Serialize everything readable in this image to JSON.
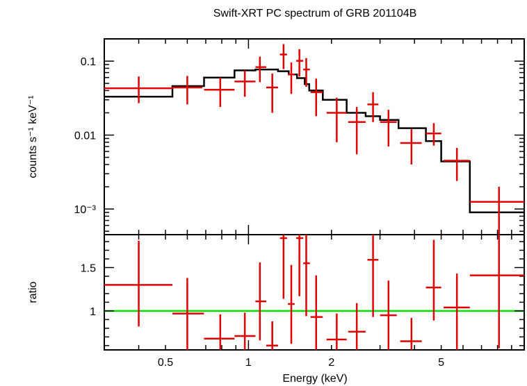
{
  "chart_data": [
    {
      "type": "scatter",
      "panel": "spectrum",
      "title": "Swift-XRT PC spectrum of GRB 201104B",
      "xlabel": "Energy (keV)",
      "ylabel": "counts s⁻¹ keV⁻¹",
      "xscale": "log",
      "yscale": "log",
      "xlim": [
        0.3,
        10
      ],
      "ylim": [
        0.00045,
        0.2
      ],
      "y_tick_labels": [
        "0.1",
        "0.01",
        "10⁻³"
      ],
      "y_tick_values": [
        0.1,
        0.01,
        0.001
      ],
      "x_tick_labels": [
        "0.5",
        "1",
        "2",
        "5"
      ],
      "x_tick_values": [
        0.5,
        1,
        2,
        5
      ],
      "series": [
        {
          "kind": "data",
          "color": "#e00000",
          "points": [
            {
              "x": 0.4,
              "xlo": 0.3,
              "xhi": 0.53,
              "y": 0.043,
              "ylo": 0.027,
              "yhi": 0.062
            },
            {
              "x": 0.6,
              "xlo": 0.53,
              "xhi": 0.68,
              "y": 0.044,
              "ylo": 0.026,
              "yhi": 0.063
            },
            {
              "x": 0.79,
              "xlo": 0.69,
              "xhi": 0.89,
              "y": 0.041,
              "ylo": 0.024,
              "yhi": 0.06
            },
            {
              "x": 0.97,
              "xlo": 0.89,
              "xhi": 1.06,
              "y": 0.053,
              "ylo": 0.033,
              "yhi": 0.075
            },
            {
              "x": 1.1,
              "xlo": 1.06,
              "xhi": 1.16,
              "y": 0.083,
              "ylo": 0.052,
              "yhi": 0.115
            },
            {
              "x": 1.22,
              "xlo": 1.16,
              "xhi": 1.28,
              "y": 0.044,
              "ylo": 0.02,
              "yhi": 0.068
            },
            {
              "x": 1.34,
              "xlo": 1.3,
              "xhi": 1.38,
              "y": 0.123,
              "ylo": 0.078,
              "yhi": 0.17
            },
            {
              "x": 1.43,
              "xlo": 1.39,
              "xhi": 1.47,
              "y": 0.066,
              "ylo": 0.036,
              "yhi": 0.096
            },
            {
              "x": 1.53,
              "xlo": 1.49,
              "xhi": 1.58,
              "y": 0.101,
              "ylo": 0.062,
              "yhi": 0.145
            },
            {
              "x": 1.62,
              "xlo": 1.58,
              "xhi": 1.67,
              "y": 0.077,
              "ylo": 0.045,
              "yhi": 0.11
            },
            {
              "x": 1.76,
              "xlo": 1.68,
              "xhi": 1.86,
              "y": 0.038,
              "ylo": 0.018,
              "yhi": 0.058
            },
            {
              "x": 2.09,
              "xlo": 1.92,
              "xhi": 2.27,
              "y": 0.02,
              "ylo": 0.008,
              "yhi": 0.032
            },
            {
              "x": 2.47,
              "xlo": 2.3,
              "xhi": 2.66,
              "y": 0.015,
              "ylo": 0.0055,
              "yhi": 0.024
            },
            {
              "x": 2.83,
              "xlo": 2.7,
              "xhi": 2.96,
              "y": 0.026,
              "ylo": 0.015,
              "yhi": 0.038
            },
            {
              "x": 3.22,
              "xlo": 3.0,
              "xhi": 3.45,
              "y": 0.015,
              "ylo": 0.007,
              "yhi": 0.022
            },
            {
              "x": 3.9,
              "xlo": 3.55,
              "xhi": 4.25,
              "y": 0.0078,
              "ylo": 0.004,
              "yhi": 0.012
            },
            {
              "x": 4.7,
              "xlo": 4.4,
              "xhi": 5.0,
              "y": 0.0105,
              "ylo": 0.0072,
              "yhi": 0.0145
            },
            {
              "x": 5.7,
              "xlo": 5.1,
              "xhi": 6.35,
              "y": 0.0045,
              "ylo": 0.0024,
              "yhi": 0.0067
            },
            {
              "x": 8.1,
              "xlo": 6.35,
              "xhi": 10.0,
              "y": 0.00125,
              "ylo": 0.00045,
              "yhi": 0.002
            }
          ]
        },
        {
          "kind": "model",
          "color": "#000000",
          "steps": [
            {
              "xlo": 0.3,
              "xhi": 0.53,
              "y": 0.033
            },
            {
              "xlo": 0.53,
              "xhi": 0.69,
              "y": 0.046
            },
            {
              "xlo": 0.69,
              "xhi": 0.89,
              "y": 0.06
            },
            {
              "xlo": 0.89,
              "xhi": 1.06,
              "y": 0.075
            },
            {
              "xlo": 1.06,
              "xhi": 1.28,
              "y": 0.077
            },
            {
              "xlo": 1.28,
              "xhi": 1.4,
              "y": 0.073
            },
            {
              "xlo": 1.4,
              "xhi": 1.5,
              "y": 0.066
            },
            {
              "xlo": 1.5,
              "xhi": 1.6,
              "y": 0.059
            },
            {
              "xlo": 1.6,
              "xhi": 1.66,
              "y": 0.049
            },
            {
              "xlo": 1.66,
              "xhi": 1.86,
              "y": 0.04
            },
            {
              "xlo": 1.86,
              "xhi": 2.27,
              "y": 0.03
            },
            {
              "xlo": 2.27,
              "xhi": 2.66,
              "y": 0.02
            },
            {
              "xlo": 2.66,
              "xhi": 3.0,
              "y": 0.018
            },
            {
              "xlo": 3.0,
              "xhi": 3.5,
              "y": 0.016
            },
            {
              "xlo": 3.5,
              "xhi": 4.4,
              "y": 0.0124
            },
            {
              "xlo": 4.4,
              "xhi": 5.0,
              "y": 0.0083
            },
            {
              "xlo": 5.0,
              "xhi": 6.35,
              "y": 0.0044
            },
            {
              "xlo": 6.35,
              "xhi": 10.0,
              "y": 0.0009
            }
          ]
        }
      ]
    },
    {
      "type": "scatter",
      "panel": "ratio",
      "xlabel": "Energy (keV)",
      "ylabel": "ratio",
      "xscale": "log",
      "xlim": [
        0.3,
        10
      ],
      "ylim": [
        0.55,
        1.88
      ],
      "y_tick_labels": [
        "1",
        "1.5"
      ],
      "y_tick_values": [
        1,
        1.5
      ],
      "x_tick_labels": [
        "0.5",
        "1",
        "2",
        "5"
      ],
      "x_tick_values": [
        0.5,
        1,
        2,
        5
      ],
      "reference_line": {
        "y": 1,
        "color": "#00e000"
      },
      "series": [
        {
          "kind": "data",
          "color": "#e00000",
          "points": [
            {
              "x": 0.4,
              "xlo": 0.3,
              "xhi": 0.53,
              "y": 1.3,
              "ylo": 0.82,
              "yhi": 1.81
            },
            {
              "x": 0.6,
              "xlo": 0.53,
              "xhi": 0.69,
              "y": 0.97,
              "ylo": 0.55,
              "yhi": 1.38
            },
            {
              "x": 0.79,
              "xlo": 0.69,
              "xhi": 0.89,
              "y": 0.68,
              "ylo": 0.55,
              "yhi": 0.96
            },
            {
              "x": 0.97,
              "xlo": 0.89,
              "xhi": 1.06,
              "y": 0.71,
              "ylo": 0.55,
              "yhi": 0.98
            },
            {
              "x": 1.1,
              "xlo": 1.06,
              "xhi": 1.16,
              "y": 1.11,
              "ylo": 0.66,
              "yhi": 1.56
            },
            {
              "x": 1.22,
              "xlo": 1.16,
              "xhi": 1.28,
              "y": 0.6,
              "ylo": 0.55,
              "yhi": 0.88
            },
            {
              "x": 1.34,
              "xlo": 1.3,
              "xhi": 1.38,
              "y": 1.84,
              "ylo": 1.14,
              "yhi": 1.88
            },
            {
              "x": 1.43,
              "xlo": 1.39,
              "xhi": 1.47,
              "y": 1.08,
              "ylo": 0.62,
              "yhi": 1.53
            },
            {
              "x": 1.53,
              "xlo": 1.49,
              "xhi": 1.58,
              "y": 1.84,
              "ylo": 1.17,
              "yhi": 1.88
            },
            {
              "x": 1.62,
              "xlo": 1.58,
              "xhi": 1.67,
              "y": 1.55,
              "ylo": 0.94,
              "yhi": 1.88
            },
            {
              "x": 1.76,
              "xlo": 1.68,
              "xhi": 1.86,
              "y": 0.93,
              "ylo": 0.55,
              "yhi": 1.41
            },
            {
              "x": 2.09,
              "xlo": 1.92,
              "xhi": 2.27,
              "y": 0.67,
              "ylo": 0.55,
              "yhi": 0.97
            },
            {
              "x": 2.47,
              "xlo": 2.3,
              "xhi": 2.66,
              "y": 0.76,
              "ylo": 0.55,
              "yhi": 1.09
            },
            {
              "x": 2.83,
              "xlo": 2.7,
              "xhi": 2.96,
              "y": 1.59,
              "ylo": 0.93,
              "yhi": 1.88
            },
            {
              "x": 3.22,
              "xlo": 3.0,
              "xhi": 3.45,
              "y": 0.95,
              "ylo": 0.55,
              "yhi": 1.35
            },
            {
              "x": 3.9,
              "xlo": 3.55,
              "xhi": 4.25,
              "y": 0.65,
              "ylo": 0.55,
              "yhi": 0.92
            },
            {
              "x": 4.7,
              "xlo": 4.4,
              "xhi": 5.0,
              "y": 1.27,
              "ylo": 0.89,
              "yhi": 1.82
            },
            {
              "x": 5.7,
              "xlo": 5.1,
              "xhi": 6.35,
              "y": 1.04,
              "ylo": 0.55,
              "yhi": 1.43
            },
            {
              "x": 8.1,
              "xlo": 6.35,
              "xhi": 10.0,
              "y": 1.41,
              "ylo": 0.57,
              "yhi": 1.88
            }
          ]
        }
      ]
    }
  ]
}
